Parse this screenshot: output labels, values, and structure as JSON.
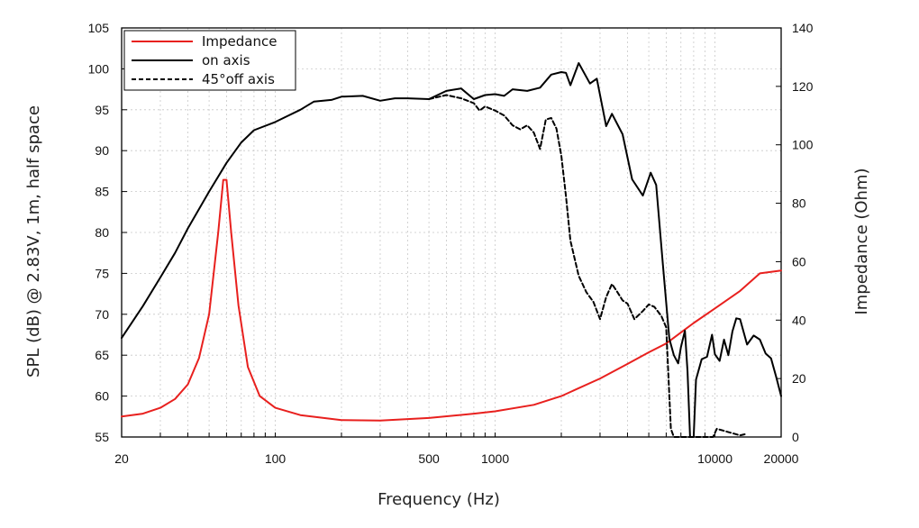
{
  "chart_data": {
    "type": "line",
    "xscale": "log",
    "xlim": [
      20,
      20000
    ],
    "ylim_left": [
      55,
      105
    ],
    "ylim_right": [
      0,
      140
    ],
    "xlabel": "Frequency (Hz)",
    "ylabel_left": "SPL (dB) @ 2.83V, 1m, half space",
    "ylabel_right": "Impedance (Ohm)",
    "x_ticks": [
      20,
      100,
      500,
      1000,
      10000,
      20000
    ],
    "y_left_ticks": [
      55,
      60,
      65,
      70,
      75,
      80,
      85,
      90,
      95,
      100,
      105
    ],
    "y_right_ticks": [
      0,
      20,
      40,
      60,
      80,
      100,
      120,
      140
    ],
    "legend_position": "top-left",
    "series": [
      {
        "name": "Impedance",
        "axis": "right",
        "style": "solid",
        "color": "#e8201e",
        "points": [
          [
            20,
            7
          ],
          [
            25,
            8
          ],
          [
            30,
            10
          ],
          [
            35,
            13
          ],
          [
            40,
            18
          ],
          [
            45,
            27
          ],
          [
            50,
            42
          ],
          [
            55,
            70
          ],
          [
            58,
            88
          ],
          [
            60,
            88
          ],
          [
            63,
            70
          ],
          [
            68,
            45
          ],
          [
            75,
            24
          ],
          [
            85,
            14
          ],
          [
            100,
            10
          ],
          [
            130,
            7.5
          ],
          [
            200,
            5.8
          ],
          [
            300,
            5.6
          ],
          [
            500,
            6.5
          ],
          [
            800,
            8
          ],
          [
            1000,
            8.8
          ],
          [
            1500,
            11
          ],
          [
            2000,
            14
          ],
          [
            3000,
            20
          ],
          [
            4000,
            25
          ],
          [
            5000,
            29
          ],
          [
            6000,
            32
          ],
          [
            8000,
            39
          ],
          [
            10000,
            44
          ],
          [
            13000,
            50
          ],
          [
            16000,
            56
          ],
          [
            20000,
            57
          ]
        ]
      },
      {
        "name": "on axis",
        "axis": "left",
        "style": "solid",
        "color": "#000000",
        "points": [
          [
            20,
            67.1
          ],
          [
            25,
            71
          ],
          [
            30,
            74.5
          ],
          [
            35,
            77.5
          ],
          [
            40,
            80.5
          ],
          [
            50,
            85
          ],
          [
            60,
            88.5
          ],
          [
            70,
            91
          ],
          [
            80,
            92.5
          ],
          [
            100,
            93.5
          ],
          [
            130,
            95
          ],
          [
            150,
            96
          ],
          [
            180,
            96.2
          ],
          [
            200,
            96.6
          ],
          [
            250,
            96.7
          ],
          [
            300,
            96.1
          ],
          [
            350,
            96.4
          ],
          [
            400,
            96.4
          ],
          [
            500,
            96.3
          ],
          [
            600,
            97.3
          ],
          [
            700,
            97.6
          ],
          [
            800,
            96.3
          ],
          [
            900,
            96.8
          ],
          [
            1000,
            96.9
          ],
          [
            1100,
            96.7
          ],
          [
            1200,
            97.5
          ],
          [
            1400,
            97.3
          ],
          [
            1600,
            97.7
          ],
          [
            1800,
            99.3
          ],
          [
            2000,
            99.6
          ],
          [
            2100,
            99.5
          ],
          [
            2200,
            98
          ],
          [
            2400,
            100.7
          ],
          [
            2700,
            98.2
          ],
          [
            2900,
            98.8
          ],
          [
            3200,
            93
          ],
          [
            3400,
            94.5
          ],
          [
            3800,
            92
          ],
          [
            4200,
            86.5
          ],
          [
            4700,
            84.5
          ],
          [
            5100,
            87.3
          ],
          [
            5400,
            85.8
          ],
          [
            5800,
            76
          ],
          [
            6200,
            67
          ],
          [
            6500,
            65
          ],
          [
            6800,
            64
          ],
          [
            7000,
            66
          ],
          [
            7300,
            68
          ],
          [
            7500,
            63
          ],
          [
            7700,
            55
          ],
          [
            8000,
            55
          ],
          [
            8200,
            62
          ],
          [
            8700,
            64.5
          ],
          [
            9200,
            64.8
          ],
          [
            9700,
            67.5
          ],
          [
            10000,
            65.1
          ],
          [
            10500,
            64.3
          ],
          [
            11000,
            66.9
          ],
          [
            11500,
            65
          ],
          [
            12000,
            67.9
          ],
          [
            12500,
            69.5
          ],
          [
            13000,
            69.4
          ],
          [
            14000,
            66.3
          ],
          [
            15000,
            67.4
          ],
          [
            16000,
            66.9
          ],
          [
            17000,
            65.2
          ],
          [
            18000,
            64.6
          ],
          [
            19000,
            62.3
          ],
          [
            20000,
            60
          ]
        ]
      },
      {
        "name": "45°off axis",
        "axis": "left",
        "style": "dashed",
        "color": "#000000",
        "points": [
          [
            500,
            96.3
          ],
          [
            600,
            96.8
          ],
          [
            700,
            96.4
          ],
          [
            800,
            95.8
          ],
          [
            850,
            94.9
          ],
          [
            900,
            95.4
          ],
          [
            1000,
            94.9
          ],
          [
            1100,
            94.3
          ],
          [
            1200,
            93.1
          ],
          [
            1300,
            92.6
          ],
          [
            1400,
            93.1
          ],
          [
            1500,
            92.2
          ],
          [
            1600,
            90.2
          ],
          [
            1700,
            93.8
          ],
          [
            1800,
            94
          ],
          [
            1900,
            92.7
          ],
          [
            2000,
            89.4
          ],
          [
            2100,
            84.4
          ],
          [
            2200,
            79
          ],
          [
            2400,
            74.7
          ],
          [
            2600,
            72.7
          ],
          [
            2800,
            71.5
          ],
          [
            3000,
            69.4
          ],
          [
            3200,
            72.1
          ],
          [
            3400,
            73.7
          ],
          [
            3600,
            72.7
          ],
          [
            3800,
            71.7
          ],
          [
            4000,
            71.3
          ],
          [
            4300,
            69.4
          ],
          [
            4700,
            70.4
          ],
          [
            5000,
            71.2
          ],
          [
            5300,
            70.9
          ],
          [
            5700,
            69.8
          ],
          [
            6000,
            68.4
          ],
          [
            6300,
            56
          ],
          [
            6500,
            55
          ],
          [
            9800,
            55
          ],
          [
            10200,
            56
          ],
          [
            13000,
            55.2
          ],
          [
            14000,
            55.4
          ]
        ]
      }
    ]
  }
}
